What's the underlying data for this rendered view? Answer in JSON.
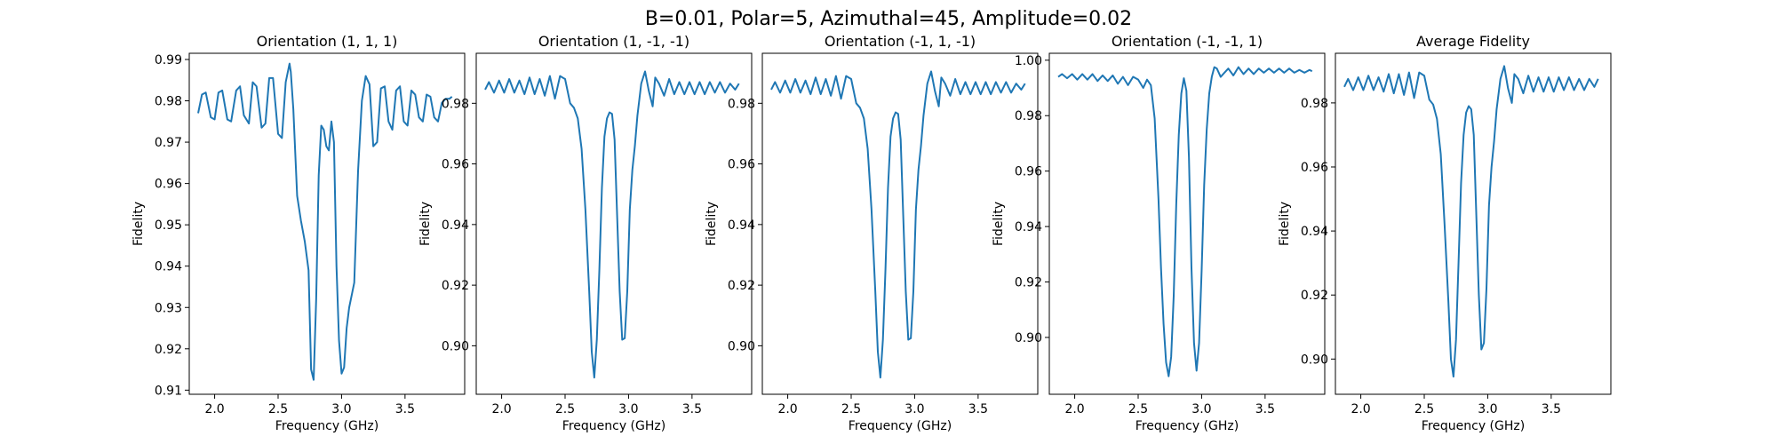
{
  "figure": {
    "suptitle": "B=0.01, Polar=5, Azimuthal=45, Amplitude=0.02"
  },
  "colors": {
    "line": "#1f77b4",
    "axes": "#000000",
    "background": "#ffffff"
  },
  "chart_data": [
    {
      "type": "line",
      "title": "Orientation (1, 1, 1)",
      "xlabel": "Frequency (GHz)",
      "ylabel": "Fidelity",
      "xlim": [
        1.8,
        3.97
      ],
      "ylim": [
        0.909,
        0.9915
      ],
      "xticks": [
        2.0,
        2.5,
        3.0,
        3.5
      ],
      "xtick_labels": [
        "2.0",
        "2.5",
        "3.0",
        "3.5"
      ],
      "yticks": [
        0.91,
        0.92,
        0.93,
        0.94,
        0.95,
        0.96,
        0.97,
        0.98,
        0.99
      ],
      "ytick_labels": [
        "0.91",
        "0.92",
        "0.93",
        "0.94",
        "0.95",
        "0.96",
        "0.97",
        "0.98",
        "0.99"
      ],
      "grid": false,
      "series": [
        {
          "x": [
            1.87,
            1.9,
            1.93,
            1.97,
            2.0,
            2.03,
            2.06,
            2.1,
            2.13,
            2.17,
            2.2,
            2.23,
            2.27,
            2.3,
            2.33,
            2.37,
            2.4,
            2.43,
            2.46,
            2.5,
            2.53,
            2.56,
            2.59,
            2.6,
            2.62,
            2.65,
            2.68,
            2.71,
            2.74,
            2.76,
            2.78,
            2.8,
            2.82,
            2.84,
            2.86,
            2.88,
            2.9,
            2.92,
            2.94,
            2.96,
            2.98,
            3.0,
            3.02,
            3.04,
            3.06,
            3.08,
            3.1,
            3.13,
            3.16,
            3.19,
            3.22,
            3.25,
            3.28,
            3.31,
            3.34,
            3.37,
            3.4,
            3.43,
            3.46,
            3.49,
            3.52,
            3.55,
            3.58,
            3.61,
            3.64,
            3.67,
            3.7,
            3.73,
            3.76,
            3.79,
            3.82,
            3.85,
            3.87
          ],
          "y": [
            0.977,
            0.9815,
            0.982,
            0.976,
            0.9755,
            0.982,
            0.9825,
            0.9755,
            0.975,
            0.9825,
            0.9835,
            0.9765,
            0.9745,
            0.9845,
            0.9835,
            0.9735,
            0.9745,
            0.9855,
            0.9855,
            0.972,
            0.971,
            0.9845,
            0.989,
            0.987,
            0.978,
            0.957,
            0.951,
            0.946,
            0.939,
            0.915,
            0.9125,
            0.932,
            0.962,
            0.974,
            0.973,
            0.969,
            0.968,
            0.975,
            0.97,
            0.94,
            0.922,
            0.914,
            0.9155,
            0.925,
            0.93,
            0.933,
            0.936,
            0.963,
            0.98,
            0.986,
            0.984,
            0.969,
            0.97,
            0.983,
            0.9835,
            0.975,
            0.973,
            0.9825,
            0.9835,
            0.975,
            0.974,
            0.9825,
            0.9815,
            0.976,
            0.975,
            0.9815,
            0.981,
            0.976,
            0.975,
            0.9795,
            0.9805,
            0.9805,
            0.981
          ]
        }
      ]
    },
    {
      "type": "line",
      "title": "Orientation (1, -1, -1)",
      "xlabel": "Frequency (GHz)",
      "ylabel": "Fidelity",
      "xlim": [
        1.8,
        3.97
      ],
      "ylim": [
        0.884,
        0.9965
      ],
      "xticks": [
        2.0,
        2.5,
        3.0,
        3.5
      ],
      "xtick_labels": [
        "2.0",
        "2.5",
        "3.0",
        "3.5"
      ],
      "yticks": [
        0.9,
        0.92,
        0.94,
        0.96,
        0.98
      ],
      "ytick_labels": [
        "0.90",
        "0.92",
        "0.94",
        "0.96",
        "0.98"
      ],
      "grid": false,
      "series": [
        {
          "x": [
            1.87,
            1.9,
            1.94,
            1.98,
            2.02,
            2.06,
            2.1,
            2.14,
            2.18,
            2.22,
            2.26,
            2.3,
            2.34,
            2.38,
            2.42,
            2.46,
            2.5,
            2.54,
            2.57,
            2.6,
            2.63,
            2.66,
            2.69,
            2.71,
            2.73,
            2.75,
            2.77,
            2.79,
            2.81,
            2.83,
            2.85,
            2.87,
            2.89,
            2.91,
            2.93,
            2.95,
            2.97,
            2.99,
            3.01,
            3.03,
            3.05,
            3.07,
            3.1,
            3.13,
            3.16,
            3.19,
            3.21,
            3.24,
            3.28,
            3.32,
            3.36,
            3.4,
            3.44,
            3.48,
            3.52,
            3.56,
            3.6,
            3.64,
            3.68,
            3.72,
            3.76,
            3.8,
            3.84,
            3.87
          ],
          "y": [
            0.9845,
            0.987,
            0.9835,
            0.9875,
            0.9835,
            0.988,
            0.9835,
            0.9875,
            0.983,
            0.9885,
            0.983,
            0.988,
            0.9825,
            0.989,
            0.9815,
            0.989,
            0.988,
            0.98,
            0.9785,
            0.975,
            0.965,
            0.945,
            0.918,
            0.898,
            0.8895,
            0.902,
            0.925,
            0.952,
            0.969,
            0.975,
            0.977,
            0.9765,
            0.968,
            0.943,
            0.918,
            0.902,
            0.9025,
            0.918,
            0.945,
            0.958,
            0.966,
            0.976,
            0.9865,
            0.9905,
            0.984,
            0.979,
            0.9885,
            0.9865,
            0.9825,
            0.988,
            0.983,
            0.987,
            0.983,
            0.987,
            0.983,
            0.987,
            0.983,
            0.987,
            0.9835,
            0.987,
            0.9835,
            0.9865,
            0.9845,
            0.9865
          ]
        }
      ]
    },
    {
      "type": "line",
      "title": "Orientation (-1, 1, -1)",
      "xlabel": "Frequency (GHz)",
      "ylabel": "Fidelity",
      "xlim": [
        1.8,
        3.97
      ],
      "ylim": [
        0.884,
        0.9965
      ],
      "xticks": [
        2.0,
        2.5,
        3.0,
        3.5
      ],
      "xtick_labels": [
        "2.0",
        "2.5",
        "3.0",
        "3.5"
      ],
      "yticks": [
        0.9,
        0.92,
        0.94,
        0.96,
        0.98
      ],
      "ytick_labels": [
        "0.90",
        "0.92",
        "0.94",
        "0.96",
        "0.98"
      ],
      "grid": false,
      "series": [
        {
          "x": [
            1.87,
            1.9,
            1.94,
            1.98,
            2.02,
            2.06,
            2.1,
            2.14,
            2.18,
            2.22,
            2.26,
            2.3,
            2.34,
            2.38,
            2.42,
            2.46,
            2.5,
            2.54,
            2.57,
            2.6,
            2.63,
            2.66,
            2.69,
            2.71,
            2.73,
            2.75,
            2.77,
            2.79,
            2.81,
            2.83,
            2.85,
            2.87,
            2.89,
            2.91,
            2.93,
            2.95,
            2.97,
            2.99,
            3.01,
            3.03,
            3.05,
            3.07,
            3.1,
            3.13,
            3.16,
            3.19,
            3.21,
            3.24,
            3.28,
            3.32,
            3.36,
            3.4,
            3.44,
            3.48,
            3.52,
            3.56,
            3.6,
            3.64,
            3.68,
            3.72,
            3.76,
            3.8,
            3.84,
            3.87
          ],
          "y": [
            0.9845,
            0.987,
            0.9835,
            0.9875,
            0.9835,
            0.988,
            0.9835,
            0.9875,
            0.983,
            0.9885,
            0.983,
            0.988,
            0.9825,
            0.989,
            0.9815,
            0.989,
            0.988,
            0.98,
            0.9785,
            0.975,
            0.965,
            0.945,
            0.918,
            0.898,
            0.8895,
            0.902,
            0.925,
            0.952,
            0.969,
            0.975,
            0.977,
            0.9765,
            0.968,
            0.943,
            0.918,
            0.902,
            0.9025,
            0.918,
            0.945,
            0.958,
            0.966,
            0.976,
            0.9865,
            0.9905,
            0.984,
            0.979,
            0.9885,
            0.9865,
            0.9825,
            0.988,
            0.983,
            0.987,
            0.983,
            0.987,
            0.983,
            0.987,
            0.983,
            0.987,
            0.9835,
            0.987,
            0.9835,
            0.9865,
            0.9845,
            0.9865
          ]
        }
      ]
    },
    {
      "type": "line",
      "title": "Orientation (-1, -1, 1)",
      "xlabel": "Frequency (GHz)",
      "ylabel": "Fidelity",
      "xlim": [
        1.8,
        3.97
      ],
      "ylim": [
        0.8795,
        1.0025
      ],
      "xticks": [
        2.0,
        2.5,
        3.0,
        3.5
      ],
      "xtick_labels": [
        "2.0",
        "2.5",
        "3.0",
        "3.5"
      ],
      "yticks": [
        0.9,
        0.92,
        0.94,
        0.96,
        0.98,
        1.0
      ],
      "ytick_labels": [
        "0.90",
        "0.92",
        "0.94",
        "0.96",
        "0.98",
        "1.00"
      ],
      "grid": false,
      "series": [
        {
          "x": [
            1.87,
            1.9,
            1.94,
            1.98,
            2.02,
            2.06,
            2.1,
            2.14,
            2.18,
            2.22,
            2.26,
            2.3,
            2.34,
            2.38,
            2.42,
            2.46,
            2.5,
            2.54,
            2.57,
            2.6,
            2.63,
            2.66,
            2.68,
            2.7,
            2.72,
            2.74,
            2.76,
            2.78,
            2.8,
            2.82,
            2.84,
            2.86,
            2.88,
            2.9,
            2.92,
            2.94,
            2.96,
            2.98,
            3.0,
            3.02,
            3.04,
            3.06,
            3.08,
            3.1,
            3.12,
            3.15,
            3.18,
            3.21,
            3.25,
            3.29,
            3.33,
            3.37,
            3.41,
            3.45,
            3.49,
            3.53,
            3.57,
            3.61,
            3.65,
            3.69,
            3.73,
            3.77,
            3.81,
            3.85,
            3.87
          ],
          "y": [
            0.994,
            0.995,
            0.9935,
            0.995,
            0.993,
            0.995,
            0.993,
            0.995,
            0.9925,
            0.9945,
            0.9925,
            0.9945,
            0.9915,
            0.994,
            0.991,
            0.994,
            0.993,
            0.99,
            0.993,
            0.991,
            0.979,
            0.95,
            0.925,
            0.905,
            0.891,
            0.886,
            0.893,
            0.915,
            0.948,
            0.973,
            0.988,
            0.9935,
            0.989,
            0.965,
            0.925,
            0.898,
            0.888,
            0.898,
            0.924,
            0.955,
            0.975,
            0.988,
            0.994,
            0.9975,
            0.997,
            0.994,
            0.9955,
            0.997,
            0.9945,
            0.9975,
            0.995,
            0.997,
            0.995,
            0.997,
            0.9955,
            0.997,
            0.9955,
            0.997,
            0.9955,
            0.997,
            0.9955,
            0.9965,
            0.9955,
            0.9965,
            0.996
          ]
        }
      ]
    },
    {
      "type": "line",
      "title": "Average Fidelity",
      "xlabel": "Frequency (GHz)",
      "ylabel": "Fidelity",
      "xlim": [
        1.8,
        3.97
      ],
      "ylim": [
        0.889,
        0.9955
      ],
      "xticks": [
        2.0,
        2.5,
        3.0,
        3.5
      ],
      "xtick_labels": [
        "2.0",
        "2.5",
        "3.0",
        "3.5"
      ],
      "yticks": [
        0.9,
        0.92,
        0.94,
        0.96,
        0.98
      ],
      "ytick_labels": [
        "0.90",
        "0.92",
        "0.94",
        "0.96",
        "0.98"
      ],
      "grid": false,
      "series": [
        {
          "x": [
            1.87,
            1.9,
            1.94,
            1.98,
            2.02,
            2.06,
            2.1,
            2.14,
            2.18,
            2.22,
            2.26,
            2.3,
            2.34,
            2.38,
            2.42,
            2.46,
            2.5,
            2.54,
            2.57,
            2.6,
            2.63,
            2.66,
            2.69,
            2.71,
            2.73,
            2.75,
            2.77,
            2.79,
            2.81,
            2.83,
            2.85,
            2.87,
            2.89,
            2.91,
            2.93,
            2.95,
            2.97,
            2.99,
            3.01,
            3.03,
            3.05,
            3.07,
            3.1,
            3.13,
            3.16,
            3.19,
            3.21,
            3.24,
            3.28,
            3.32,
            3.36,
            3.4,
            3.44,
            3.48,
            3.52,
            3.56,
            3.6,
            3.64,
            3.68,
            3.72,
            3.76,
            3.8,
            3.84,
            3.87
          ],
          "y": [
            0.985,
            0.9875,
            0.984,
            0.988,
            0.984,
            0.9885,
            0.984,
            0.988,
            0.9835,
            0.989,
            0.983,
            0.989,
            0.9825,
            0.9895,
            0.9815,
            0.9895,
            0.9885,
            0.981,
            0.9795,
            0.975,
            0.964,
            0.942,
            0.918,
            0.9,
            0.8945,
            0.906,
            0.93,
            0.955,
            0.97,
            0.977,
            0.979,
            0.978,
            0.97,
            0.945,
            0.92,
            0.903,
            0.905,
            0.922,
            0.948,
            0.96,
            0.968,
            0.978,
            0.9875,
            0.9915,
            0.9845,
            0.98,
            0.989,
            0.9875,
            0.983,
            0.9885,
            0.9835,
            0.988,
            0.9835,
            0.988,
            0.9835,
            0.988,
            0.984,
            0.988,
            0.984,
            0.9875,
            0.984,
            0.9875,
            0.985,
            0.9875
          ]
        }
      ]
    }
  ]
}
